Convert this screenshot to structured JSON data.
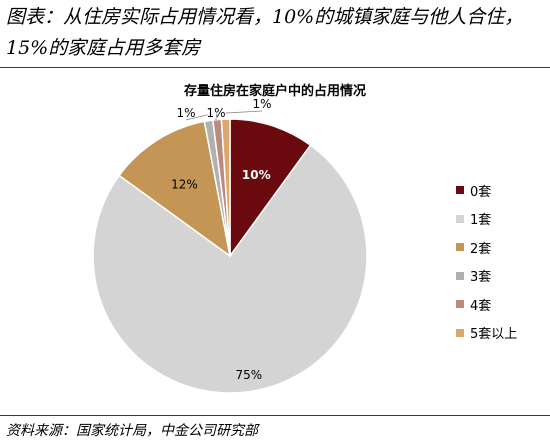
{
  "caption": "图表：从住房实际占用情况看，10%的城镇家庭与他人合住，15%的家庭占用多套房",
  "source": "资料来源：国家统计局，中金公司研究部",
  "chart_data": {
    "type": "pie",
    "title": "存量住房在家庭户中的占用情况",
    "legend_position": "right",
    "labels": [
      "0套",
      "1套",
      "2套",
      "3套",
      "4套",
      "5套以上"
    ],
    "values": [
      10,
      75,
      12,
      1,
      1,
      1
    ],
    "data_labels": [
      "10%",
      "75%",
      "12%",
      "1%",
      "1%",
      "1%"
    ],
    "colors": [
      "#6b0a0e",
      "#d4d4d4",
      "#c49555",
      "#b0b0b0",
      "#b98a7d",
      "#dba76c"
    ]
  }
}
